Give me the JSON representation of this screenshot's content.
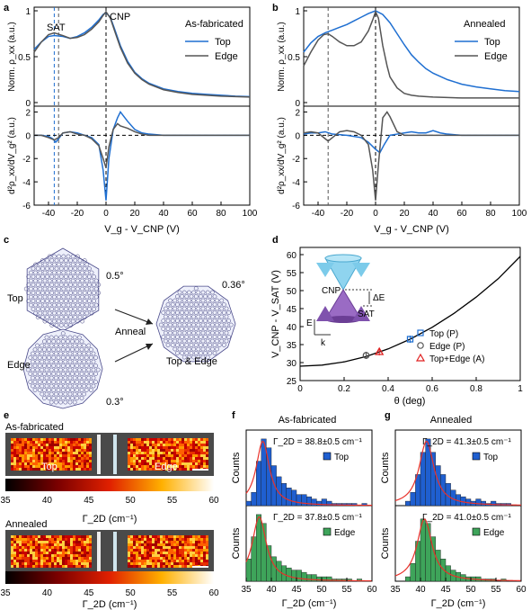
{
  "colors": {
    "top": "#1f6fd1",
    "edge": "#555555",
    "red": "#e02020",
    "top_bar": "#1f5fd0",
    "edge_bar": "#3ea45a",
    "fit": "#e8322b"
  },
  "panel_letters": [
    "a",
    "b",
    "c",
    "d",
    "e",
    "f",
    "g"
  ],
  "panel_a": {
    "title": "As-fabricated",
    "annotations": {
      "sat": "SAT",
      "cnp": "CNP"
    },
    "legend": [
      "Top",
      "Edge"
    ],
    "ylabel_top": "Norm. ρ_xx (a.u.)",
    "ylabel_bottom": "d²ρ_xx/dV_g² (a.u.)",
    "xlabel": "V_g - V_CNP (V)",
    "chart_data": {
      "type": "line",
      "x_range": [
        -50,
        100
      ],
      "top_y_range": [
        0,
        1
      ],
      "bottom_y_range": [
        -6,
        2.5
      ],
      "x_ticks": [
        -40,
        -20,
        0,
        20,
        40,
        60,
        80,
        100
      ],
      "top_y_ticks": [
        0,
        0.5,
        1
      ],
      "bottom_y_ticks": [
        -6,
        -4,
        -2,
        0,
        2
      ],
      "vlines": [
        -36,
        -33,
        0
      ],
      "series": [
        {
          "name": "Top",
          "x": [
            -50,
            -45,
            -40,
            -36,
            -30,
            -25,
            -20,
            -15,
            -10,
            -5,
            -2,
            0,
            3,
            6,
            10,
            15,
            20,
            25,
            30,
            40,
            50,
            60,
            70,
            80,
            90,
            100
          ],
          "y": [
            0.58,
            0.66,
            0.72,
            0.73,
            0.72,
            0.7,
            0.72,
            0.76,
            0.82,
            0.9,
            0.96,
            0.98,
            0.93,
            0.8,
            0.62,
            0.45,
            0.33,
            0.26,
            0.21,
            0.15,
            0.12,
            0.1,
            0.09,
            0.08,
            0.07,
            0.065
          ],
          "d2": {
            "x": [
              -50,
              -45,
              -40,
              -37,
              -35,
              -33,
              -30,
              -25,
              -20,
              -15,
              -10,
              -5,
              -2,
              0,
              2,
              5,
              8,
              10,
              15,
              20,
              25,
              30,
              40,
              50,
              60,
              80,
              100
            ],
            "y": [
              0,
              0,
              -0.1,
              -0.3,
              -0.6,
              -0.3,
              0.2,
              0.3,
              0.2,
              0,
              -0.2,
              -0.8,
              -3,
              -5.6,
              -2,
              0.5,
              1.5,
              2.0,
              1.2,
              0.5,
              0.2,
              0.1,
              0,
              0,
              0,
              0,
              0
            ]
          }
        },
        {
          "name": "Edge",
          "x": [
            -50,
            -45,
            -40,
            -36,
            -30,
            -25,
            -20,
            -15,
            -10,
            -5,
            -2,
            0,
            3,
            6,
            10,
            15,
            20,
            25,
            30,
            40,
            50,
            60,
            70,
            80,
            90,
            100
          ],
          "y": [
            0.55,
            0.66,
            0.74,
            0.76,
            0.73,
            0.7,
            0.71,
            0.74,
            0.8,
            0.88,
            0.95,
            0.99,
            0.92,
            0.78,
            0.6,
            0.43,
            0.32,
            0.25,
            0.2,
            0.14,
            0.11,
            0.09,
            0.08,
            0.07,
            0.065,
            0.06
          ],
          "d2": {
            "x": [
              -50,
              -45,
              -40,
              -36,
              -33,
              -30,
              -25,
              -20,
              -15,
              -10,
              -5,
              -2,
              0,
              2,
              5,
              8,
              10,
              15,
              20,
              25,
              30,
              40,
              50,
              60,
              80,
              100
            ],
            "y": [
              0,
              0,
              -0.2,
              -0.4,
              -0.2,
              0.2,
              0.3,
              0.1,
              0,
              -0.3,
              -0.9,
              -2,
              -2.8,
              -1,
              0.5,
              1.0,
              0.8,
              0.6,
              0.3,
              0.1,
              0,
              0,
              0,
              0,
              0,
              0
            ]
          }
        }
      ]
    }
  },
  "panel_b": {
    "title": "Annealed",
    "legend": [
      "Top",
      "Edge"
    ],
    "ylabel_top": "Norm. ρ_xx (a.u.)",
    "ylabel_bottom": "d²ρ_xx/dV_g² (a.u.)",
    "xlabel": "V_g - V_CNP (V)",
    "chart_data": {
      "type": "line",
      "x_range": [
        -50,
        100
      ],
      "top_y_range": [
        0,
        1
      ],
      "bottom_y_range": [
        -6,
        2.5
      ],
      "x_ticks": [
        -40,
        -20,
        0,
        20,
        40,
        60,
        80,
        100
      ],
      "top_y_ticks": [
        0,
        0.5,
        1
      ],
      "bottom_y_ticks": [
        -6,
        -4,
        -2,
        0,
        2
      ],
      "vlines": [
        -33,
        0
      ],
      "series": [
        {
          "name": "Top",
          "x": [
            -50,
            -45,
            -40,
            -35,
            -30,
            -25,
            -20,
            -15,
            -10,
            -5,
            0,
            5,
            10,
            15,
            20,
            25,
            30,
            35,
            40,
            50,
            60,
            70,
            80,
            90,
            100
          ],
          "y": [
            0.55,
            0.65,
            0.72,
            0.76,
            0.79,
            0.82,
            0.85,
            0.89,
            0.93,
            0.97,
            1.0,
            0.96,
            0.87,
            0.75,
            0.63,
            0.52,
            0.44,
            0.37,
            0.32,
            0.25,
            0.2,
            0.17,
            0.15,
            0.13,
            0.12
          ],
          "d2": {
            "x": [
              -50,
              -45,
              -40,
              -35,
              -30,
              -20,
              -10,
              -5,
              0,
              3,
              6,
              10,
              15,
              20,
              25,
              30,
              35,
              40,
              45,
              50,
              60,
              80,
              100
            ],
            "y": [
              0.1,
              0.2,
              0.2,
              0.3,
              0.1,
              0,
              -0.2,
              -0.6,
              -1.2,
              -1.5,
              -0.8,
              0,
              0.1,
              0.2,
              0.3,
              0.2,
              0.2,
              0.4,
              0.2,
              0.1,
              0,
              0,
              0
            ]
          }
        },
        {
          "name": "Edge",
          "x": [
            -50,
            -45,
            -40,
            -36,
            -33,
            -30,
            -25,
            -20,
            -15,
            -10,
            -5,
            -2,
            0,
            2,
            5,
            8,
            10,
            15,
            20,
            25,
            30,
            40,
            50,
            60,
            80,
            100
          ],
          "y": [
            0.4,
            0.55,
            0.68,
            0.74,
            0.75,
            0.72,
            0.66,
            0.62,
            0.62,
            0.66,
            0.78,
            0.9,
            0.99,
            0.92,
            0.62,
            0.4,
            0.28,
            0.16,
            0.1,
            0.08,
            0.07,
            0.06,
            0.055,
            0.05,
            0.05,
            0.05
          ],
          "d2": {
            "x": [
              -50,
              -45,
              -40,
              -35,
              -33,
              -30,
              -25,
              -20,
              -15,
              -10,
              -5,
              -2,
              0,
              2,
              5,
              8,
              10,
              15,
              20,
              30,
              40,
              50,
              100
            ],
            "y": [
              0.2,
              0.3,
              0.2,
              -0.3,
              -0.5,
              -0.2,
              0.3,
              0.4,
              0.3,
              0,
              -0.8,
              -3,
              -5.6,
              -2.5,
              1.5,
              2.0,
              1.6,
              0.3,
              0,
              0,
              0,
              0,
              0
            ]
          }
        }
      ]
    }
  },
  "panel_c": {
    "labels": {
      "top": "Top",
      "edge": "Edge",
      "anneal": "Anneal",
      "top_edge": "Top & Edge"
    },
    "angles": {
      "top": "0.5°",
      "edge": "0.3°",
      "combined": "0.36°"
    }
  },
  "panel_d": {
    "ylabel": "V_CNP - V_SAT (V)",
    "xlabel": "θ (deg)",
    "inset": {
      "cnp": "CNP",
      "sat": "SAT",
      "delta_e": "ΔE",
      "e_axis": "E",
      "k_axis": "k"
    },
    "legend": [
      "Top (P)",
      "Edge (P)",
      "Top+Edge (A)"
    ],
    "chart_data": {
      "type": "scatter",
      "x_range": [
        0,
        1
      ],
      "y_range": [
        25,
        62
      ],
      "x_ticks": [
        0,
        0.2,
        0.4,
        0.6,
        0.8,
        1
      ],
      "y_ticks": [
        25,
        30,
        35,
        40,
        45,
        50,
        55,
        60
      ],
      "fit_curve": {
        "x": [
          0,
          0.1,
          0.2,
          0.3,
          0.4,
          0.5,
          0.6,
          0.7,
          0.8,
          0.9,
          1.0
        ],
        "y": [
          29,
          29.3,
          30.2,
          31.7,
          33.8,
          36.5,
          39.8,
          43.7,
          48.2,
          53.3,
          59.5
        ]
      },
      "series": [
        {
          "name": "Top (P)",
          "x": [
            0.5
          ],
          "y": [
            36.5
          ],
          "err": [
            1.0
          ],
          "marker": "square"
        },
        {
          "name": "Edge (P)",
          "x": [
            0.3
          ],
          "y": [
            32.0
          ],
          "err": [
            1.0
          ],
          "marker": "circle"
        },
        {
          "name": "Top+Edge (A)",
          "x": [
            0.36
          ],
          "y": [
            33.0
          ],
          "err": [
            1.0
          ],
          "marker": "triangle"
        }
      ]
    }
  },
  "panel_e": {
    "title_top": "As-fabricated",
    "title_bottom": "Annealed",
    "label_top": "Top",
    "label_edge": "Edge",
    "colorbar_label": "Γ_2D (cm⁻¹)",
    "colorbar_ticks": [
      "35",
      "40",
      "45",
      "50",
      "55",
      "60"
    ]
  },
  "panel_f": {
    "title": "As-fabricated",
    "ylabel": "Counts",
    "xlabel": "Γ_2D (cm⁻¹)",
    "x_ticks": [
      "35",
      "40",
      "45",
      "50",
      "55",
      "60"
    ],
    "chart_data": {
      "type": "bar",
      "x_range": [
        35,
        60
      ],
      "bin_start": 35,
      "bin_width": 1,
      "series": [
        {
          "name": "Top",
          "annotation": "Γ_2D = 38.8±0.5 cm⁻¹",
          "values": [
            2,
            6,
            20,
            30,
            26,
            18,
            13,
            10,
            8,
            7,
            5,
            5,
            4,
            3,
            2,
            3,
            2,
            1,
            1,
            1,
            1,
            1,
            0,
            1,
            0
          ],
          "fit_center": 38.3,
          "fit_width": 1.6,
          "fit_peak": 29
        },
        {
          "name": "Edge",
          "annotation": "Γ_2D = 37.8±0.5 cm⁻¹",
          "values": [
            10,
            20,
            30,
            26,
            16,
            11,
            9,
            7,
            6,
            5,
            5,
            4,
            3,
            3,
            2,
            2,
            2,
            1,
            1,
            1,
            1,
            0,
            1,
            0,
            0
          ],
          "fit_center": 37.6,
          "fit_width": 1.7,
          "fit_peak": 29
        }
      ]
    }
  },
  "panel_g": {
    "title": "Annealed",
    "ylabel": "Counts",
    "xlabel": "Γ_2D (cm⁻¹)",
    "x_ticks": [
      "35",
      "40",
      "45",
      "50",
      "55",
      "60"
    ],
    "chart_data": {
      "type": "bar",
      "x_range": [
        35,
        60
      ],
      "bin_start": 35,
      "bin_width": 1,
      "series": [
        {
          "name": "Top",
          "annotation": "Γ_2D = 41.3±0.5 cm⁻¹",
          "values": [
            0,
            0,
            2,
            6,
            14,
            24,
            30,
            24,
            18,
            14,
            10,
            7,
            5,
            4,
            3,
            2,
            3,
            2,
            1,
            2,
            1,
            1,
            1,
            0,
            0
          ],
          "fit_center": 41.2,
          "fit_width": 1.8,
          "fit_peak": 29
        },
        {
          "name": "Edge",
          "annotation": "Γ_2D = 41.0±0.5 cm⁻¹",
          "values": [
            0,
            0,
            2,
            8,
            18,
            28,
            26,
            20,
            14,
            10,
            7,
            5,
            4,
            3,
            2,
            2,
            2,
            1,
            1,
            1,
            0,
            1,
            0,
            0,
            0
          ],
          "fit_center": 40.8,
          "fit_width": 1.8,
          "fit_peak": 28
        }
      ]
    }
  }
}
